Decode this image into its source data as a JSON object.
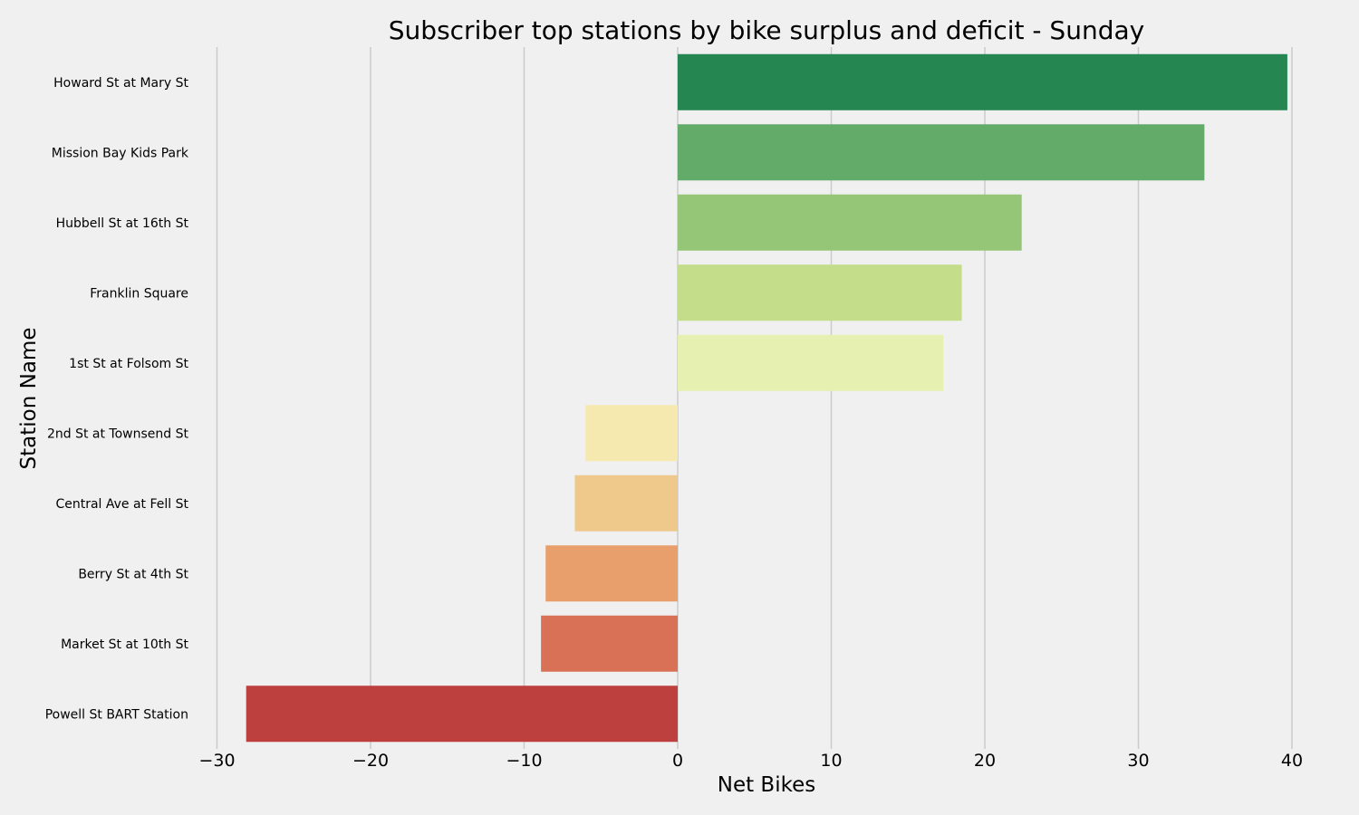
{
  "chart_data": {
    "type": "bar",
    "orientation": "horizontal",
    "title": "Subscriber top stations by bike surplus and deficit - Sunday",
    "xlabel": "Net Bikes",
    "ylabel": "Station Name",
    "xlim": [
      -31,
      41.5
    ],
    "xticks": [
      -30,
      -20,
      -10,
      0,
      10,
      20,
      30,
      40
    ],
    "xtick_labels": [
      "−30",
      "−20",
      "−10",
      "0",
      "10",
      "20",
      "30",
      "40"
    ],
    "grid": "vertical",
    "categories": [
      "Howard St at Mary St",
      "Mission Bay Kids Park",
      "Hubbell St at 16th St",
      "Franklin Square",
      "1st St at Folsom St",
      "2nd St at Townsend St",
      "Central Ave at Fell St",
      "Berry St at 4th St",
      "Market St at 10th St",
      "Powell St BART Station"
    ],
    "values": [
      39.7,
      34.3,
      22.4,
      18.5,
      17.3,
      -6.0,
      -6.7,
      -8.6,
      -8.9,
      -28.1
    ],
    "colors": [
      "#268651",
      "#63ab69",
      "#95c677",
      "#c3dd8b",
      "#e6f0b0",
      "#f6e9b0",
      "#efc98c",
      "#e89f6c",
      "#d97156",
      "#bd3f3e"
    ]
  }
}
